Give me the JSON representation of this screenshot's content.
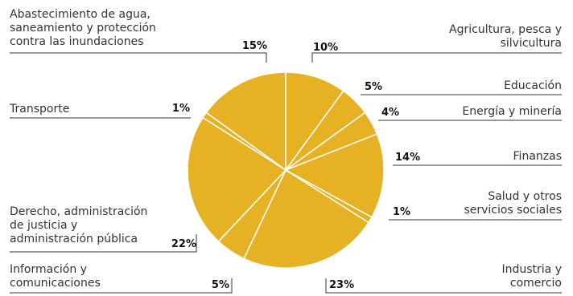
{
  "chart_data": {
    "type": "pie",
    "colors": {
      "slice": "#E6B122",
      "slice_edge": "#ffffff",
      "leader": "#333333"
    },
    "slices": [
      {
        "label": "Agricultura, pesca y silvicultura",
        "value": 10,
        "value_label": "10%"
      },
      {
        "label": "Educación",
        "value": 5,
        "value_label": "5%"
      },
      {
        "label": "Energía y minería",
        "value": 4,
        "value_label": "4%"
      },
      {
        "label": "Finanzas",
        "value": 14,
        "value_label": "14%"
      },
      {
        "label": "Salud y otros servicios sociales",
        "value": 1,
        "value_label": "1%"
      },
      {
        "label": "Industria y comercio",
        "value": 23,
        "value_label": "23%"
      },
      {
        "label": "Información y comunicaciones",
        "value": 5,
        "value_label": "5%"
      },
      {
        "label": "Derecho, administración de justicia y administración pública",
        "value": 22,
        "value_label": "22%"
      },
      {
        "label": "Transporte",
        "value": 1,
        "value_label": "1%"
      },
      {
        "label": "Abastecimiento de agua, saneamiento y protección contra las inundaciones",
        "value": 15,
        "value_label": "15%"
      }
    ]
  },
  "labels": {
    "agri": [
      "Agricultura, pesca y",
      "silvicultura"
    ],
    "edu": [
      "Educación"
    ],
    "energia": [
      "Energía y minería"
    ],
    "finanzas": [
      "Finanzas"
    ],
    "salud": [
      "Salud y otros",
      "servicios sociales"
    ],
    "industria": [
      "Industria y",
      "comercio"
    ],
    "info": [
      "Información y",
      "comunicaciones"
    ],
    "derecho": [
      "Derecho, administración",
      "de justicia y",
      "administración pública"
    ],
    "transporte": [
      "Transporte"
    ],
    "agua": [
      "Abastecimiento de agua,",
      "saneamiento y protección",
      "contra las inundaciones"
    ]
  }
}
